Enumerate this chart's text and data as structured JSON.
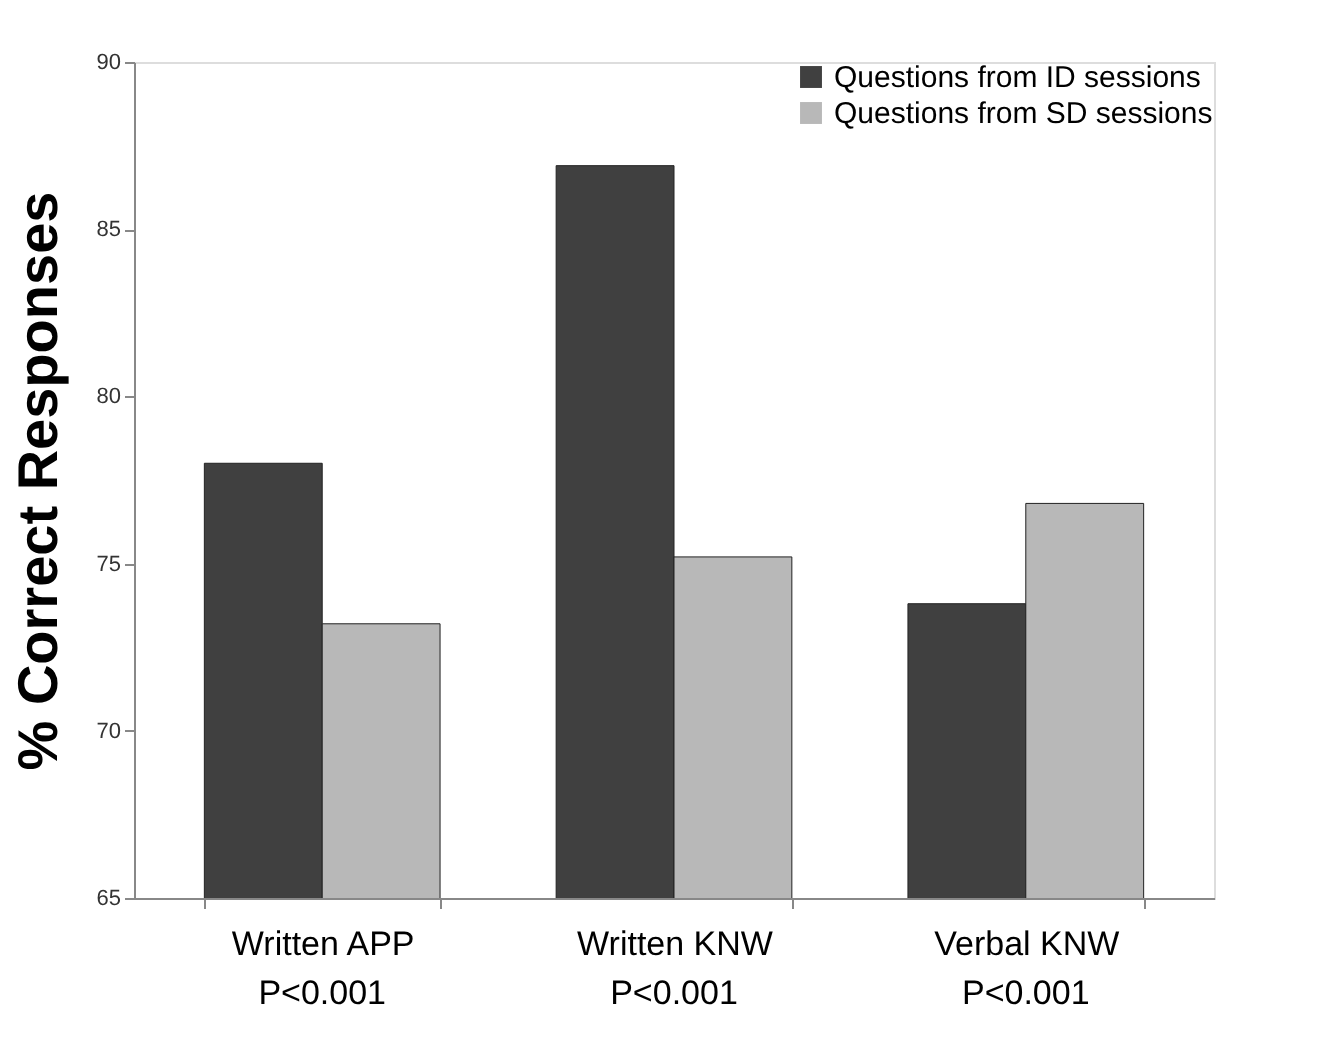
{
  "chart_data": {
    "type": "bar",
    "ylabel": "% Correct Responses",
    "categories": [
      "Written APP",
      "Written KNW",
      "Verbal KNW"
    ],
    "series": [
      {
        "name": "Questions from ID sessions",
        "color": "#404040",
        "values": [
          78.0,
          86.9,
          73.8
        ]
      },
      {
        "name": "Questions from SD sessions",
        "color": "#b8b8b8",
        "values": [
          73.2,
          75.2,
          76.8
        ]
      }
    ],
    "ylim": [
      65,
      90
    ],
    "yticks": [
      65,
      70,
      75,
      80,
      85,
      90
    ],
    "grid": false,
    "legend": "top right",
    "annotations": [
      {
        "text": "P<0.001",
        "x": "Written APP"
      },
      {
        "text": "P<0.001",
        "x": "Written KNW"
      },
      {
        "text": "P<0.001",
        "x": "Verbal KNW"
      }
    ]
  }
}
